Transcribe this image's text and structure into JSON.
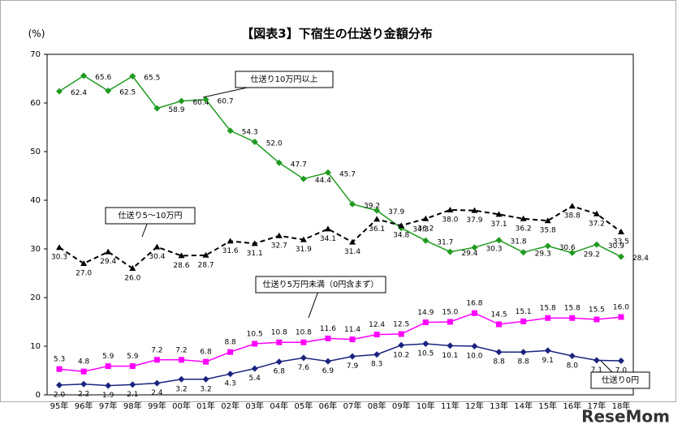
{
  "chart_data": {
    "type": "line",
    "title": "【図表3】下宿生の仕送り金額分布",
    "y_label": "(%)",
    "watermark": "ReseMom",
    "categories": [
      "95年",
      "96年",
      "97年",
      "98年",
      "99年",
      "00年",
      "01年",
      "02年",
      "03年",
      "04年",
      "05年",
      "06年",
      "07年",
      "08年",
      "09年",
      "10年",
      "11年",
      "12年",
      "13年",
      "14年",
      "15年",
      "16年",
      "17年",
      "18年"
    ],
    "ylim": [
      0,
      70
    ],
    "yticks": [
      0,
      10,
      20,
      30,
      40,
      50,
      60,
      70
    ],
    "series": [
      {
        "name": "仕送り10万円以上",
        "color": "#1f9a1f",
        "marker": "diamond",
        "dashed": false,
        "values": [
          62.4,
          65.6,
          62.5,
          65.5,
          58.9,
          60.4,
          60.7,
          54.3,
          52.0,
          47.7,
          44.4,
          45.7,
          39.2,
          37.9,
          34.3,
          31.7,
          29.4,
          30.3,
          31.8,
          29.3,
          30.6,
          29.2,
          30.9,
          28.4
        ],
        "value_labels": [
          "62.4",
          "65.6",
          "62.5",
          "65.5",
          "58.9",
          "60.4",
          "60.7",
          "54.3",
          "52.0",
          "47.7",
          "44.4",
          "45.7",
          "39.2",
          "37.9",
          "34.3",
          "31.7",
          "29.4",
          "30.3",
          "31.8",
          "29.3",
          "30.6",
          "29.2",
          "30.9",
          "28.4"
        ]
      },
      {
        "name": "仕送り5～10万円",
        "color": "#000000",
        "marker": "triangle",
        "dashed": true,
        "values": [
          30.3,
          27.0,
          29.4,
          26.0,
          30.4,
          28.6,
          28.7,
          31.6,
          31.1,
          32.7,
          31.9,
          34.1,
          31.4,
          36.1,
          34.8,
          36.2,
          38.0,
          37.9,
          37.1,
          36.2,
          35.8,
          38.8,
          37.2,
          33.5
        ],
        "value_labels": [
          "30.3",
          "27.0",
          "29.4",
          "26.0",
          "30.4",
          "28.6",
          "28.7",
          "31.6",
          "31.1",
          "32.7",
          "31.9",
          "34.1",
          "31.4",
          "36.1",
          "34.8",
          "36.2",
          "38.0",
          "37.9",
          "37.1",
          "36.2",
          "35.8",
          "38.8",
          "37.2",
          "33.5"
        ]
      },
      {
        "name": "仕送り5万円未満（0円含まず）",
        "color": "#ff00ff",
        "marker": "square",
        "dashed": false,
        "values": [
          5.3,
          4.8,
          5.9,
          5.9,
          7.2,
          7.2,
          6.8,
          8.8,
          10.5,
          10.8,
          10.8,
          11.6,
          11.4,
          12.4,
          12.5,
          14.9,
          15.0,
          16.8,
          14.5,
          15.1,
          15.8,
          15.8,
          15.5,
          16.0
        ],
        "value_labels": [
          "5.3",
          "4.8",
          "5.9",
          "5.9",
          "7.2",
          "7.2",
          "6.8",
          "8.8",
          "10.5",
          "10.8",
          "10.8",
          "11.6",
          "11.4",
          "12.4",
          "12.5",
          "14.9",
          "15.0",
          "16.8",
          "14.5",
          "15.1",
          "15.8",
          "15.8",
          "15.5",
          "16.0"
        ]
      },
      {
        "name": "仕送り0円",
        "color": "#1a237e",
        "marker": "diamond",
        "dashed": false,
        "values": [
          2.0,
          2.2,
          1.9,
          2.1,
          2.4,
          3.2,
          3.2,
          4.3,
          5.4,
          6.8,
          7.6,
          6.9,
          7.9,
          8.3,
          10.2,
          10.5,
          10.1,
          10.0,
          8.8,
          8.8,
          9.1,
          8.0,
          7.1,
          7.0
        ],
        "value_labels": [
          "2.0",
          "2.2",
          "1.9",
          "2.1",
          "2.4",
          "3.2",
          "3.2",
          "4.3",
          "5.4",
          "6.8",
          "7.6",
          "6.9",
          "7.9",
          "8.3",
          "10.2",
          "10.5",
          "10.1",
          "10.0",
          "8.8",
          "8.8",
          "9.1",
          "8.0",
          "7.1",
          "7.0"
        ]
      }
    ]
  }
}
